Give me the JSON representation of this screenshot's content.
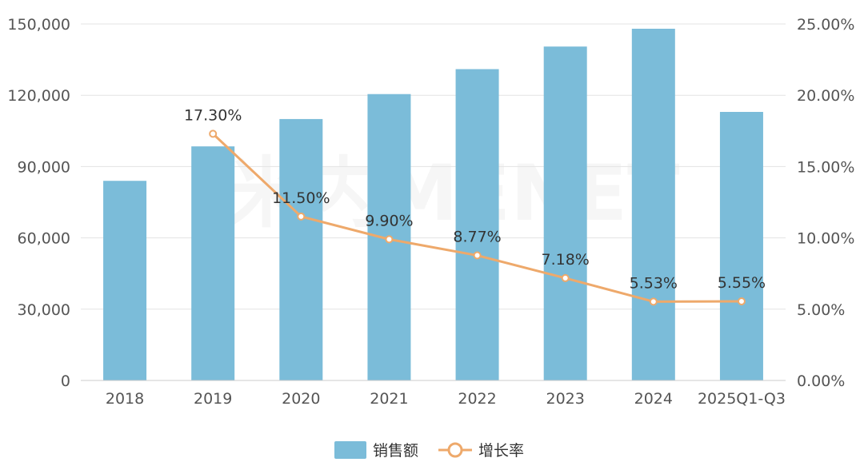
{
  "chart_data": {
    "type": "bar",
    "categories": [
      "2018",
      "2019",
      "2020",
      "2021",
      "2022",
      "2023",
      "2024",
      "2025Q1-Q3"
    ],
    "series": [
      {
        "name": "销售额",
        "type": "bar",
        "axis": "left",
        "values": [
          84000,
          98500,
          110000,
          120500,
          131000,
          140500,
          148000,
          113000
        ]
      },
      {
        "name": "增长率",
        "type": "line",
        "axis": "right",
        "values": [
          null,
          17.3,
          11.5,
          9.9,
          8.77,
          7.18,
          5.53,
          5.55
        ],
        "labels": [
          "",
          "17.30%",
          "11.50%",
          "9.90%",
          "8.77%",
          "7.18%",
          "5.53%",
          "5.55%"
        ]
      }
    ],
    "y_left": {
      "ticks": [
        "0",
        "30,000",
        "60,000",
        "90,000",
        "120,000",
        "150,000"
      ],
      "ylim": [
        0,
        150000
      ]
    },
    "y_right": {
      "ticks": [
        "0.00%",
        "5.00%",
        "10.00%",
        "15.00%",
        "20.00%",
        "25.00%"
      ],
      "ylim": [
        0,
        25
      ]
    },
    "legend": {
      "position": "bottom-center",
      "items": [
        "销售额",
        "增长率"
      ]
    },
    "watermark": "米内MENET",
    "colors": {
      "bar": "#7bbcd9",
      "line": "#eea96b",
      "grid": "#e3e3e3"
    }
  }
}
